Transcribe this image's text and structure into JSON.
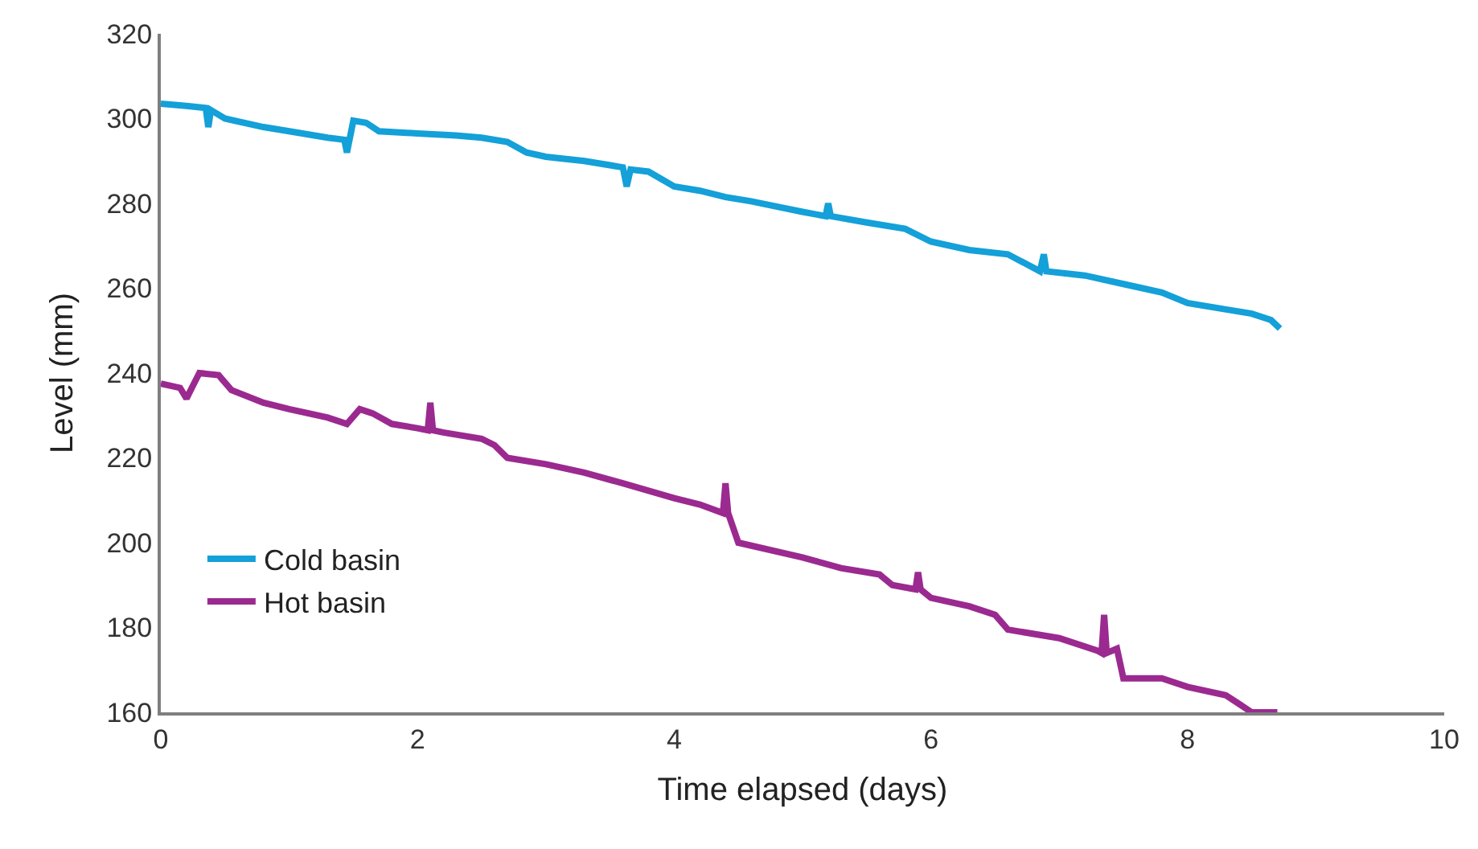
{
  "chart_data": {
    "type": "line",
    "xlabel": "Time elapsed (days)",
    "ylabel": "Level (mm)",
    "xlim": [
      0,
      10
    ],
    "xticks": [
      0,
      2,
      4,
      6,
      8,
      10
    ],
    "ylim": [
      160,
      320
    ],
    "yticks": [
      160,
      180,
      200,
      220,
      240,
      260,
      280,
      300,
      320
    ],
    "legend": "bottom left",
    "marker": "none",
    "line_style": "solid",
    "series": [
      {
        "name": "Cold basin",
        "color": "#14a0d8",
        "x": [
          0,
          0.2,
          0.35,
          0.37,
          0.39,
          0.5,
          0.8,
          1.0,
          1.3,
          1.43,
          1.45,
          1.47,
          1.5,
          1.6,
          1.7,
          2.0,
          2.3,
          2.5,
          2.7,
          2.85,
          3.0,
          3.3,
          3.6,
          3.63,
          3.66,
          3.8,
          4.0,
          4.2,
          4.4,
          4.6,
          5.0,
          5.18,
          5.2,
          5.22,
          5.5,
          5.8,
          6.0,
          6.3,
          6.6,
          6.85,
          6.88,
          6.9,
          7.2,
          7.5,
          7.8,
          8.0,
          8.3,
          8.5,
          8.65,
          8.72
        ],
        "values": [
          303.5,
          303,
          302.5,
          298,
          302,
          300,
          298,
          297,
          295.5,
          295,
          292,
          295,
          299.5,
          299,
          297,
          296.5,
          296,
          295.5,
          294.5,
          292,
          291,
          290,
          288.5,
          284,
          288,
          287.5,
          284,
          283,
          281.5,
          280.5,
          278,
          277,
          280,
          277,
          275.5,
          274,
          271,
          269,
          268,
          264,
          268,
          264,
          263,
          261,
          259,
          256.5,
          255,
          254,
          252.5,
          250.5
        ]
      },
      {
        "name": "Hot basin",
        "color": "#9b2a90",
        "x": [
          0,
          0.15,
          0.2,
          0.25,
          0.3,
          0.45,
          0.55,
          0.8,
          1.0,
          1.3,
          1.45,
          1.55,
          1.65,
          1.8,
          2.0,
          2.08,
          2.1,
          2.12,
          2.2,
          2.5,
          2.6,
          2.7,
          3.0,
          3.3,
          3.6,
          4.0,
          4.2,
          4.38,
          4.4,
          4.42,
          4.5,
          5.0,
          5.3,
          5.6,
          5.7,
          5.88,
          5.9,
          5.92,
          6.0,
          6.3,
          6.5,
          6.6,
          7.0,
          7.3,
          7.33,
          7.35,
          7.37,
          7.45,
          7.5,
          7.8,
          8.0,
          8.3,
          8.4,
          8.5,
          8.7
        ],
        "values": [
          237.5,
          236.5,
          234,
          237,
          240,
          239.5,
          236,
          233,
          231.5,
          229.5,
          228,
          231.5,
          230.5,
          228,
          227,
          226.5,
          233,
          226.5,
          226,
          224.5,
          223,
          220,
          218.5,
          216.5,
          214,
          210.5,
          209,
          207,
          214,
          207,
          200,
          196.5,
          194,
          192.5,
          190,
          189,
          193,
          189,
          187,
          185,
          183,
          179.5,
          177.5,
          174.5,
          174,
          183,
          174,
          175,
          168,
          168,
          166,
          164,
          162,
          160,
          160
        ]
      }
    ]
  }
}
